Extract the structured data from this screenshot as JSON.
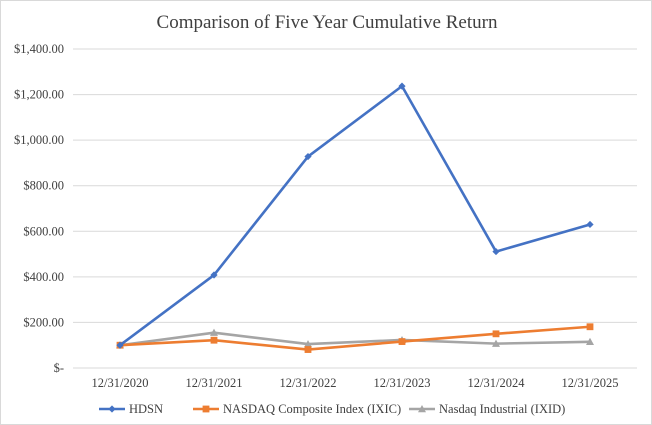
{
  "chart_data": {
    "type": "line",
    "title": "Comparison of Five Year Cumulative  Return",
    "xlabel": "",
    "ylabel": "",
    "categories": [
      "12/31/2020",
      "12/31/2021",
      "12/31/2022",
      "12/31/2023",
      "12/31/2024",
      "12/31/2025"
    ],
    "ylim": [
      0,
      1400
    ],
    "yticks": [
      0,
      200,
      400,
      600,
      800,
      1000,
      1200,
      1400
    ],
    "ytick_labels": [
      "$-",
      "$200.00",
      "$400.00",
      "$600.00",
      "$800.00",
      "$1,000.00",
      "$1,200.00",
      "$1,400.00"
    ],
    "grid": true,
    "legend_position": "bottom",
    "series": [
      {
        "name": "HDSN",
        "values": [
          100,
          408,
          928,
          1237,
          511,
          630
        ],
        "color": "#4472c4",
        "marker": "diamond"
      },
      {
        "name": "NASDAQ Composite Index (IXIC)",
        "values": [
          100,
          122,
          81,
          116,
          150,
          181
        ],
        "color": "#ed7d31",
        "marker": "square"
      },
      {
        "name": "Nasdaq Industrial (IXID)",
        "values": [
          100,
          155,
          105,
          123,
          107,
          115
        ],
        "color": "#a5a5a5",
        "marker": "triangle"
      }
    ]
  }
}
